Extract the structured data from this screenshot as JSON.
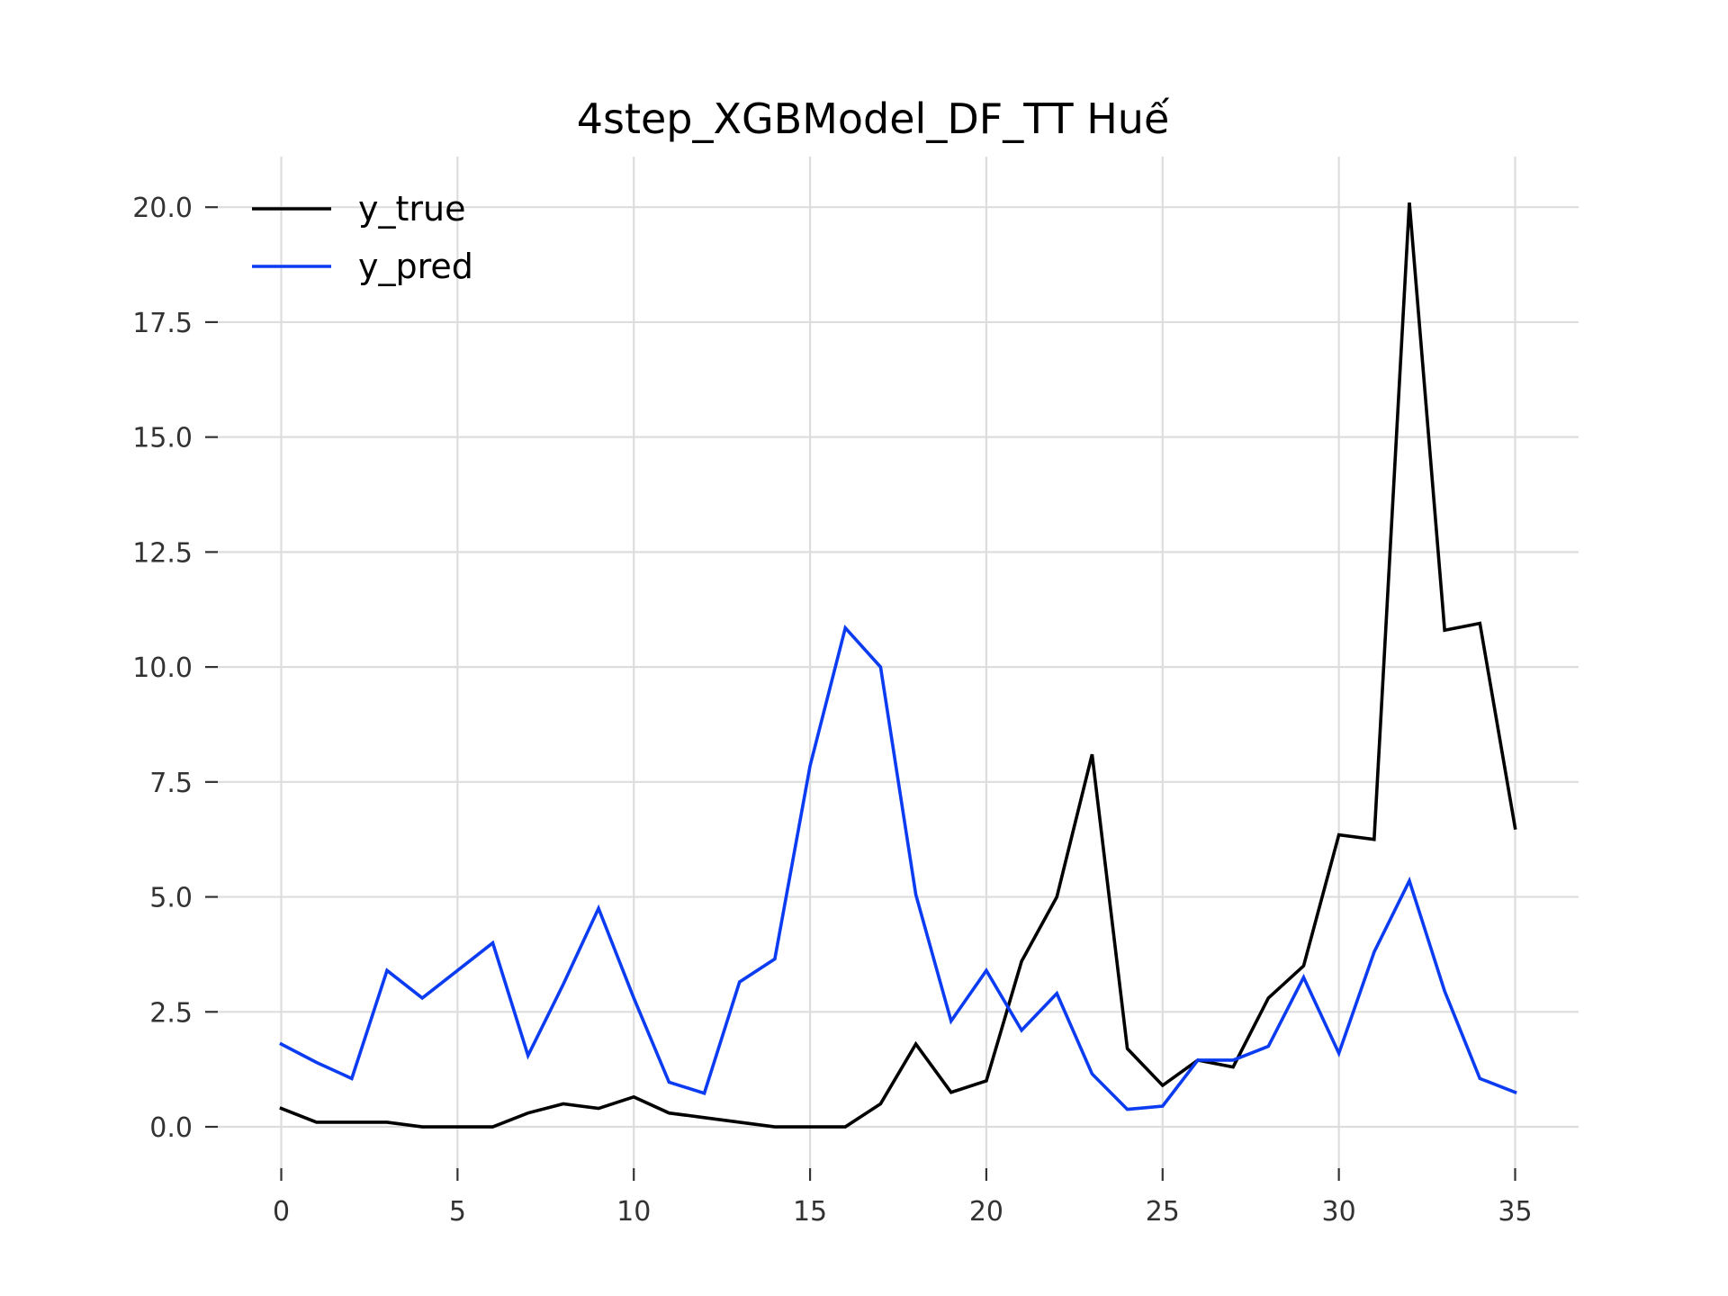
{
  "chart_data": {
    "type": "line",
    "title": "4step_XGBModel_DF_TT Huế",
    "xlabel": "",
    "ylabel": "",
    "grid": true,
    "legend_position": "top-left",
    "xlim": [
      -1.8,
      36.8
    ],
    "ylim": [
      -0.9,
      21.1
    ],
    "x_ticks": [
      0,
      5,
      10,
      15,
      20,
      25,
      30,
      35
    ],
    "x_tick_labels": [
      "0",
      "5",
      "10",
      "15",
      "20",
      "25",
      "30",
      "35"
    ],
    "y_ticks": [
      0.0,
      2.5,
      5.0,
      7.5,
      10.0,
      12.5,
      15.0,
      17.5,
      20.0
    ],
    "y_tick_labels": [
      "0.0",
      "2.5",
      "5.0",
      "7.5",
      "10.0",
      "12.5",
      "15.0",
      "17.5",
      "20.0"
    ],
    "x": [
      0,
      1,
      2,
      3,
      4,
      5,
      6,
      7,
      8,
      9,
      10,
      11,
      12,
      13,
      14,
      15,
      16,
      17,
      18,
      19,
      20,
      21,
      22,
      23,
      24,
      25,
      26,
      27,
      28,
      29,
      30,
      31,
      32,
      33,
      34,
      35
    ],
    "series": [
      {
        "name": "y_true",
        "color": "#000000",
        "values": [
          0.4,
          0.1,
          0.1,
          0.1,
          0.0,
          0.0,
          0.0,
          0.3,
          0.5,
          0.4,
          0.65,
          0.3,
          0.2,
          0.1,
          0.0,
          0.0,
          0.0,
          0.5,
          1.8,
          0.75,
          1.0,
          3.6,
          5.0,
          8.1,
          1.7,
          0.9,
          1.45,
          1.3,
          2.8,
          3.5,
          6.35,
          6.25,
          20.1,
          10.8,
          10.95,
          6.5
        ]
      },
      {
        "name": "y_pred",
        "color": "#0b3cf2",
        "values": [
          1.8,
          1.4,
          1.05,
          3.4,
          2.8,
          3.4,
          4.0,
          1.55,
          3.1,
          4.75,
          2.8,
          0.97,
          0.73,
          3.15,
          3.65,
          7.85,
          10.85,
          10.0,
          5.05,
          2.3,
          3.4,
          2.1,
          2.9,
          1.15,
          0.38,
          0.45,
          1.45,
          1.45,
          1.75,
          3.25,
          1.6,
          3.8,
          5.35,
          2.95,
          1.05,
          0.75
        ]
      }
    ]
  }
}
